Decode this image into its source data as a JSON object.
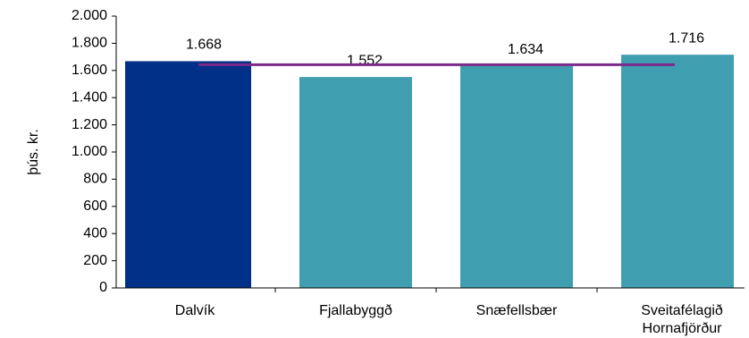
{
  "chart_data": {
    "type": "bar",
    "y_label": "þús. kr.",
    "categories": [
      "Dalvík",
      "Fjallabyggð",
      "Snæfellsbær",
      "Sveitafélagið Hornafjörður"
    ],
    "values": [
      1668,
      1552,
      1634,
      1716
    ],
    "value_labels": [
      "1.668",
      "1.552",
      "1.634",
      "1.716"
    ],
    "colors": [
      "#003087",
      "#3f9fb0",
      "#3f9fb0",
      "#3f9fb0"
    ],
    "reference_line": {
      "value": 1642.5,
      "color": "#7b2a8c"
    },
    "ylim": [
      0,
      2000
    ],
    "yticks": [
      0,
      200,
      400,
      600,
      800,
      {
        "value": 1000,
        "label": "1.000"
      },
      {
        "value": 1200,
        "label": "1.200"
      },
      {
        "value": 1400,
        "label": "1.400"
      },
      {
        "value": 1600,
        "label": "1.600"
      },
      {
        "value": 1800,
        "label": "1.800"
      },
      {
        "value": 2000,
        "label": "2.000"
      }
    ]
  }
}
